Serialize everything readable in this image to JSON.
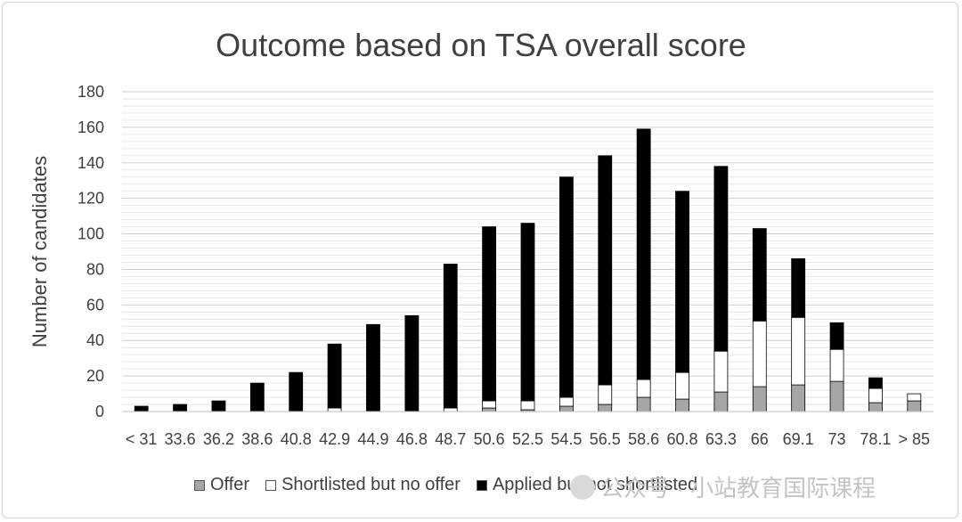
{
  "chart_data": {
    "type": "bar",
    "stacked": true,
    "title": "Outcome based on TSA overall score",
    "xlabel": "",
    "ylabel": "Number of candidates",
    "ylim": [
      0,
      180
    ],
    "yticks": [
      0,
      20,
      40,
      60,
      80,
      100,
      120,
      140,
      160,
      180
    ],
    "grid": true,
    "legend_position": "bottom",
    "categories": [
      "< 31",
      "33.6",
      "36.2",
      "38.6",
      "40.8",
      "42.9",
      "44.9",
      "46.8",
      "48.7",
      "50.6",
      "52.5",
      "54.5",
      "56.5",
      "58.6",
      "60.8",
      "63.3",
      "66",
      "69.1",
      "73",
      "78.1",
      "> 85"
    ],
    "series": [
      {
        "name": "Offer",
        "color": "#a6a6a6",
        "values": [
          0,
          0,
          0,
          0,
          0,
          0,
          0,
          0,
          0,
          2,
          1,
          3,
          4,
          8,
          7,
          11,
          14,
          15,
          17,
          5,
          6
        ]
      },
      {
        "name": "Shortlisted but no offer",
        "color": "#ffffff",
        "values": [
          0,
          0,
          0,
          0,
          0,
          2,
          0,
          0,
          2,
          4,
          5,
          5,
          11,
          10,
          15,
          23,
          37,
          38,
          18,
          8,
          4
        ]
      },
      {
        "name": "Applied but not shortlisted",
        "color": "#000000",
        "values": [
          3,
          4,
          6,
          16,
          22,
          36,
          49,
          54,
          81,
          98,
          100,
          124,
          129,
          141,
          102,
          104,
          52,
          33,
          15,
          6,
          0
        ]
      }
    ]
  },
  "watermark": {
    "text": "公众号 · 小站教育国际课程",
    "icon": "wechat-icon"
  }
}
